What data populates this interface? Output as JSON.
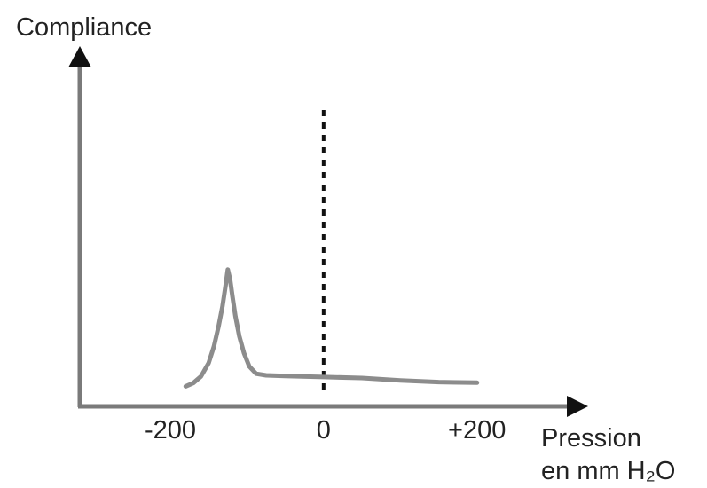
{
  "chart_data": {
    "type": "line",
    "ylabel": "Compliance",
    "xlabel": [
      "Pression",
      "en mm H₂O"
    ],
    "x_ticks": [
      {
        "value": -200,
        "label": "-200"
      },
      {
        "value": 0,
        "label": "0"
      },
      {
        "value": 200,
        "label": "+200"
      }
    ],
    "xlim": [
      -318,
      345
    ],
    "ylim": [
      0,
      100
    ],
    "reference_line": {
      "x": 0,
      "style": "dotted"
    },
    "series": [
      {
        "points": [
          [
            -180,
            6
          ],
          [
            -170,
            7
          ],
          [
            -160,
            9
          ],
          [
            -150,
            13
          ],
          [
            -143,
            18
          ],
          [
            -137,
            24
          ],
          [
            -132,
            30
          ],
          [
            -128,
            36
          ],
          [
            -125,
            41
          ],
          [
            -122,
            38
          ],
          [
            -119,
            33
          ],
          [
            -115,
            27
          ],
          [
            -110,
            21
          ],
          [
            -104,
            16
          ],
          [
            -97,
            12
          ],
          [
            -88,
            9.8
          ],
          [
            -75,
            9.3
          ],
          [
            -50,
            9.1
          ],
          [
            0,
            8.8
          ],
          [
            50,
            8.5
          ],
          [
            100,
            7.8
          ],
          [
            150,
            7.3
          ],
          [
            200,
            7.1
          ]
        ],
        "color": "#8c8c8c"
      }
    ],
    "axis_color": "#7a7a7a",
    "grid": false
  }
}
